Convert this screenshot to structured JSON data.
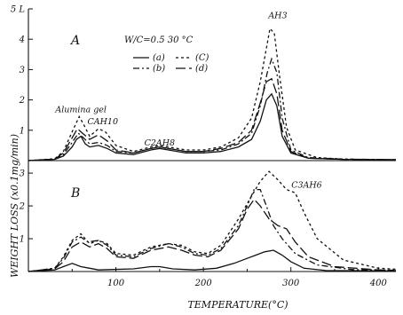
{
  "chart_data": {
    "type": "line",
    "xlabel": "TEMPERATURE(°C)",
    "ylabel": "WEIGHT LOSS (x0.1mg/min)",
    "condition_label": "W/C=0.5  30 °C",
    "x_ticks": [
      100,
      200,
      300,
      400
    ],
    "xlim": [
      0,
      420
    ],
    "panels": [
      {
        "label": "A",
        "ylim": [
          0,
          5
        ],
        "y_ticks": [
          1,
          2,
          3,
          4,
          5
        ],
        "y_tick_labels": [
          "1",
          "2",
          "3",
          "4",
          "5 L"
        ],
        "annotations": [
          {
            "text": "Alumina gel",
            "x": 60,
            "y": 1.6
          },
          {
            "text": "CAH10",
            "x": 85,
            "y": 1.2
          },
          {
            "text": "C2AH8",
            "x": 150,
            "y": 0.5
          },
          {
            "text": "AH3",
            "x": 285,
            "y": 4.7
          }
        ],
        "legend": [
          {
            "text": "(a)",
            "style": "solid"
          },
          {
            "text": "(b)",
            "style": "dashdot"
          },
          {
            "text": "(C)",
            "style": "dashed"
          },
          {
            "text": "(d)",
            "style": "longdash"
          }
        ],
        "series": [
          {
            "id": "a",
            "style": "solid",
            "points": [
              [
                0,
                0
              ],
              [
                30,
                0.04
              ],
              [
                40,
                0.15
              ],
              [
                50,
                0.45
              ],
              [
                55,
                0.7
              ],
              [
                60,
                0.8
              ],
              [
                65,
                0.55
              ],
              [
                70,
                0.45
              ],
              [
                80,
                0.5
              ],
              [
                90,
                0.4
              ],
              [
                100,
                0.25
              ],
              [
                120,
                0.2
              ],
              [
                140,
                0.35
              ],
              [
                150,
                0.4
              ],
              [
                160,
                0.35
              ],
              [
                180,
                0.25
              ],
              [
                200,
                0.25
              ],
              [
                220,
                0.3
              ],
              [
                240,
                0.45
              ],
              [
                255,
                0.7
              ],
              [
                265,
                1.3
              ],
              [
                272,
                2.0
              ],
              [
                278,
                2.2
              ],
              [
                284,
                1.8
              ],
              [
                290,
                0.8
              ],
              [
                300,
                0.25
              ],
              [
                320,
                0.08
              ],
              [
                360,
                0.04
              ],
              [
                420,
                0.03
              ]
            ]
          },
          {
            "id": "b",
            "style": "dashdot",
            "points": [
              [
                0,
                0
              ],
              [
                30,
                0.05
              ],
              [
                40,
                0.2
              ],
              [
                50,
                0.6
              ],
              [
                57,
                0.9
              ],
              [
                63,
                0.75
              ],
              [
                70,
                0.55
              ],
              [
                80,
                0.6
              ],
              [
                90,
                0.5
              ],
              [
                100,
                0.3
              ],
              [
                120,
                0.25
              ],
              [
                140,
                0.4
              ],
              [
                150,
                0.45
              ],
              [
                160,
                0.4
              ],
              [
                180,
                0.3
              ],
              [
                200,
                0.3
              ],
              [
                220,
                0.35
              ],
              [
                240,
                0.55
              ],
              [
                255,
                0.9
              ],
              [
                265,
                1.8
              ],
              [
                273,
                2.9
              ],
              [
                278,
                3.35
              ],
              [
                284,
                2.9
              ],
              [
                290,
                1.4
              ],
              [
                300,
                0.35
              ],
              [
                320,
                0.1
              ],
              [
                360,
                0.05
              ],
              [
                420,
                0.03
              ]
            ]
          },
          {
            "id": "c",
            "style": "dashed",
            "points": [
              [
                0,
                0
              ],
              [
                30,
                0.06
              ],
              [
                40,
                0.3
              ],
              [
                50,
                0.95
              ],
              [
                58,
                1.45
              ],
              [
                63,
                1.2
              ],
              [
                70,
                0.8
              ],
              [
                80,
                1.05
              ],
              [
                88,
                0.95
              ],
              [
                100,
                0.5
              ],
              [
                120,
                0.3
              ],
              [
                140,
                0.45
              ],
              [
                150,
                0.5
              ],
              [
                160,
                0.45
              ],
              [
                180,
                0.35
              ],
              [
                200,
                0.35
              ],
              [
                220,
                0.45
              ],
              [
                240,
                0.75
              ],
              [
                255,
                1.4
              ],
              [
                265,
                2.6
              ],
              [
                272,
                3.7
              ],
              [
                276,
                4.35
              ],
              [
                281,
                4.2
              ],
              [
                287,
                2.8
              ],
              [
                295,
                1.1
              ],
              [
                305,
                0.35
              ],
              [
                330,
                0.1
              ],
              [
                360,
                0.05
              ],
              [
                420,
                0.03
              ]
            ]
          },
          {
            "id": "d",
            "style": "longdash",
            "points": [
              [
                0,
                0
              ],
              [
                30,
                0.05
              ],
              [
                40,
                0.25
              ],
              [
                50,
                0.75
              ],
              [
                56,
                1.05
              ],
              [
                62,
                0.9
              ],
              [
                70,
                0.7
              ],
              [
                80,
                0.85
              ],
              [
                90,
                0.65
              ],
              [
                100,
                0.35
              ],
              [
                120,
                0.25
              ],
              [
                140,
                0.4
              ],
              [
                150,
                0.45
              ],
              [
                160,
                0.4
              ],
              [
                180,
                0.3
              ],
              [
                200,
                0.3
              ],
              [
                220,
                0.4
              ],
              [
                240,
                0.6
              ],
              [
                255,
                1.0
              ],
              [
                265,
                1.9
              ],
              [
                272,
                2.6
              ],
              [
                278,
                2.7
              ],
              [
                284,
                2.2
              ],
              [
                290,
                1.0
              ],
              [
                300,
                0.3
              ],
              [
                320,
                0.08
              ],
              [
                360,
                0.04
              ],
              [
                420,
                0.03
              ]
            ]
          }
        ]
      },
      {
        "label": "B",
        "ylim": [
          0,
          3.3
        ],
        "y_ticks": [
          1,
          2,
          3
        ],
        "y_tick_labels": [
          "1",
          "2",
          "3"
        ],
        "annotations": [
          {
            "text": "C3AH6",
            "x": 318,
            "y": 2.55
          }
        ],
        "series": [
          {
            "id": "a",
            "style": "solid",
            "points": [
              [
                0,
                0
              ],
              [
                30,
                0.05
              ],
              [
                40,
                0.15
              ],
              [
                50,
                0.25
              ],
              [
                60,
                0.15
              ],
              [
                70,
                0.1
              ],
              [
                80,
                0.05
              ],
              [
                120,
                0.08
              ],
              [
                140,
                0.15
              ],
              [
                150,
                0.15
              ],
              [
                165,
                0.08
              ],
              [
                190,
                0.05
              ],
              [
                215,
                0.1
              ],
              [
                235,
                0.25
              ],
              [
                250,
                0.4
              ],
              [
                260,
                0.5
              ],
              [
                270,
                0.6
              ],
              [
                280,
                0.65
              ],
              [
                290,
                0.5
              ],
              [
                300,
                0.3
              ],
              [
                315,
                0.1
              ],
              [
                340,
                0.03
              ],
              [
                420,
                0.02
              ]
            ]
          },
          {
            "id": "b",
            "style": "dashdot",
            "points": [
              [
                0,
                0
              ],
              [
                30,
                0.1
              ],
              [
                40,
                0.4
              ],
              [
                50,
                0.9
              ],
              [
                60,
                1.05
              ],
              [
                68,
                0.9
              ],
              [
                80,
                0.95
              ],
              [
                90,
                0.8
              ],
              [
                100,
                0.5
              ],
              [
                120,
                0.45
              ],
              [
                140,
                0.7
              ],
              [
                160,
                0.85
              ],
              [
                175,
                0.75
              ],
              [
                190,
                0.55
              ],
              [
                205,
                0.5
              ],
              [
                220,
                0.7
              ],
              [
                240,
                1.4
              ],
              [
                250,
                2.0
              ],
              [
                258,
                2.5
              ],
              [
                265,
                2.5
              ],
              [
                272,
                2.0
              ],
              [
                280,
                1.4
              ],
              [
                290,
                1.0
              ],
              [
                305,
                0.55
              ],
              [
                330,
                0.2
              ],
              [
                370,
                0.06
              ],
              [
                420,
                0.04
              ]
            ]
          },
          {
            "id": "c",
            "style": "dashed",
            "points": [
              [
                0,
                0
              ],
              [
                30,
                0.1
              ],
              [
                40,
                0.45
              ],
              [
                50,
                0.95
              ],
              [
                60,
                1.15
              ],
              [
                70,
                0.85
              ],
              [
                80,
                0.95
              ],
              [
                90,
                0.85
              ],
              [
                100,
                0.55
              ],
              [
                120,
                0.5
              ],
              [
                140,
                0.75
              ],
              [
                160,
                0.85
              ],
              [
                175,
                0.8
              ],
              [
                190,
                0.6
              ],
              [
                205,
                0.55
              ],
              [
                220,
                0.8
              ],
              [
                240,
                1.6
              ],
              [
                255,
                2.3
              ],
              [
                265,
                2.75
              ],
              [
                275,
                3.05
              ],
              [
                285,
                2.8
              ],
              [
                295,
                2.5
              ],
              [
                305,
                2.4
              ],
              [
                315,
                1.8
              ],
              [
                330,
                1.0
              ],
              [
                360,
                0.35
              ],
              [
                400,
                0.1
              ],
              [
                420,
                0.07
              ]
            ]
          },
          {
            "id": "d",
            "style": "longdash",
            "points": [
              [
                0,
                0
              ],
              [
                30,
                0.08
              ],
              [
                40,
                0.3
              ],
              [
                50,
                0.75
              ],
              [
                60,
                0.9
              ],
              [
                70,
                0.75
              ],
              [
                80,
                0.85
              ],
              [
                90,
                0.7
              ],
              [
                100,
                0.45
              ],
              [
                120,
                0.4
              ],
              [
                140,
                0.65
              ],
              [
                160,
                0.75
              ],
              [
                175,
                0.65
              ],
              [
                190,
                0.5
              ],
              [
                205,
                0.45
              ],
              [
                220,
                0.65
              ],
              [
                240,
                1.3
              ],
              [
                250,
                1.9
              ],
              [
                258,
                2.2
              ],
              [
                265,
                2.0
              ],
              [
                275,
                1.6
              ],
              [
                285,
                1.4
              ],
              [
                295,
                1.3
              ],
              [
                305,
                0.9
              ],
              [
                320,
                0.45
              ],
              [
                350,
                0.15
              ],
              [
                400,
                0.05
              ],
              [
                420,
                0.03
              ]
            ]
          }
        ]
      }
    ]
  }
}
